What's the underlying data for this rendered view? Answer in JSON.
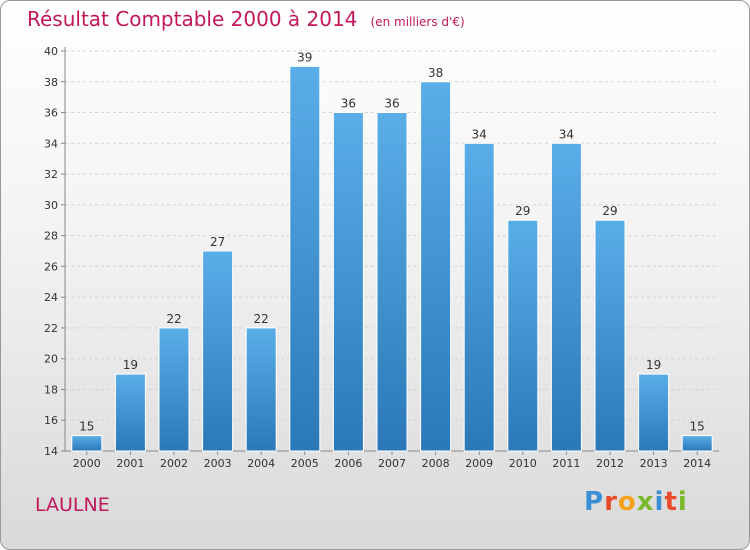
{
  "chart_data": {
    "type": "bar",
    "title": "Résultat Comptable 2000 à 2014",
    "subtitle": "(en milliers d'€)",
    "categories": [
      "2000",
      "2001",
      "2002",
      "2003",
      "2004",
      "2005",
      "2006",
      "2007",
      "2008",
      "2009",
      "2010",
      "2011",
      "2012",
      "2013",
      "2014"
    ],
    "values": [
      15,
      19,
      22,
      27,
      22,
      39,
      36,
      36,
      38,
      34,
      29,
      34,
      29,
      19,
      15
    ],
    "ylim": [
      14,
      40
    ],
    "yticks": [
      14,
      16,
      18,
      20,
      22,
      24,
      26,
      28,
      30,
      32,
      34,
      36,
      38,
      40
    ],
    "grid": true,
    "bar_color_top": "#5aaee8",
    "bar_color_bottom": "#2a78b8"
  },
  "footer": {
    "commune": "LAULNE",
    "logo_text": "Proxiti",
    "logo_colors": [
      "#3a8fd6",
      "#e94b2c",
      "#f4a21d",
      "#7ab929",
      "#3a8fd6",
      "#e94b2c",
      "#7ab929"
    ]
  }
}
